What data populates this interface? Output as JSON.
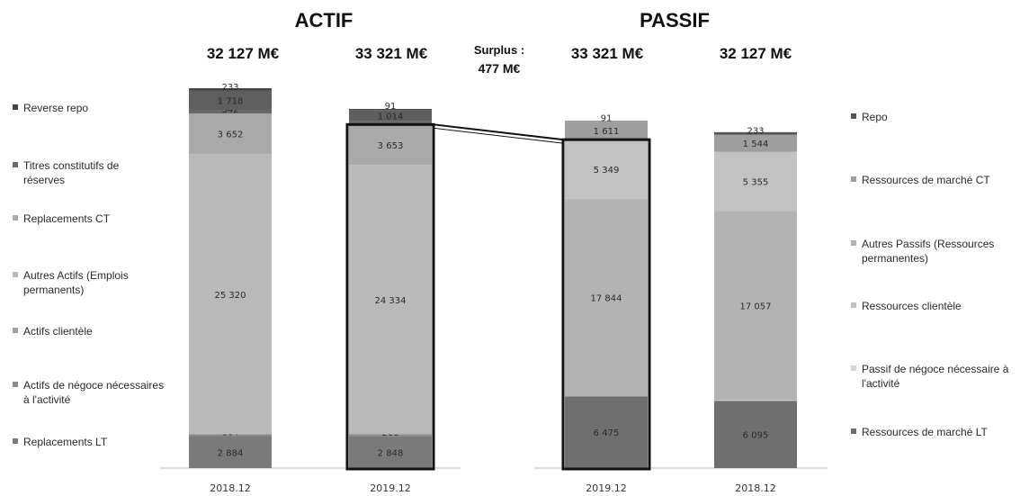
{
  "chart_data": {
    "type": "bar",
    "stacked": true,
    "headings": {
      "left": "ACTIF",
      "right": "PASSIF"
    },
    "surplus": {
      "label": "Surplus :",
      "value": "477 M€"
    },
    "categories": [
      "2018.12",
      "2019.12",
      "2019.12",
      "2018.12"
    ],
    "totals": [
      "32 127 M€",
      "33 321 M€",
      "33 321 M€",
      "32 127 M€"
    ],
    "actif_legend": [
      "Reverse repo",
      "Titres constitutifs de réserves",
      "Replacements CT",
      "Autres Actifs (Emplois permanents)",
      "Actifs clientèle",
      "Actifs de négoce nécessaires à l'activité",
      "Replacements LT"
    ],
    "passif_legend": [
      "Repo",
      "Ressources de marché CT",
      "Autres Passifs (Ressources permanentes)",
      "Ressources clientèle",
      "Passif de négoce nécessaire à l'activité",
      "Ressources de marché LT"
    ],
    "bars": [
      {
        "category": "2018.12",
        "segments": [
          {
            "name": "Replacements LT",
            "value": 2884,
            "label": "2 884",
            "color": "#7a7a7a"
          },
          {
            "name": "Actifs de négoce nécessaires à l'activité",
            "value": 164,
            "label": "164",
            "color": "#8c8c8c"
          },
          {
            "name": "Autres Actifs (Emplois permanents)",
            "value": 25320,
            "label": "25 320",
            "color": "#b9b9b9"
          },
          {
            "name": "Replacements CT",
            "value": 3652,
            "label": "3 652",
            "color": "#aaaaaa"
          },
          {
            "name": "Titres constitutifs de réserves",
            "value": 342,
            "label": "342",
            "color": "#6a6a6a"
          },
          {
            "name": "Reverse repo",
            "value": 1718,
            "label": "1 718",
            "color": "#5e5e5e"
          },
          {
            "name": "Reverse repo",
            "value": 233,
            "label": "233",
            "color": "#444444"
          }
        ]
      },
      {
        "category": "2019.12",
        "segments": [
          {
            "name": "Replacements LT",
            "value": 2848,
            "label": "2 848",
            "color": "#7a7a7a"
          },
          {
            "name": "Actifs de négoce nécessaires à l'activité",
            "value": 200,
            "label": "200",
            "color": "#8c8c8c"
          },
          {
            "name": "Autres Actifs (Emplois permanents)",
            "value": 24334,
            "label": "24 334",
            "color": "#b9b9b9"
          },
          {
            "name": "Replacements CT",
            "value": 3653,
            "label": "3 653",
            "color": "#aaaaaa"
          },
          {
            "name": "Titres constitutifs de réserves",
            "value": 300,
            "label": "",
            "color": "#6a6a6a"
          },
          {
            "name": "Reverse repo",
            "value": 1014,
            "label": "1 014",
            "color": "#5e5e5e"
          },
          {
            "name": "Reverse repo",
            "value": 91,
            "label": "91",
            "color": "#444444"
          }
        ]
      },
      {
        "category": "2019.12",
        "segments": [
          {
            "name": "Ressources de marché LT",
            "value": 6475,
            "label": "6 475",
            "color": "#6f6f6f"
          },
          {
            "name": "Autres Passifs (Ressources permanentes)",
            "value": 17844,
            "label": "17 844",
            "color": "#b3b3b3"
          },
          {
            "name": "Ressources clientèle",
            "value": 5349,
            "label": "5 349",
            "color": "#c2c2c2"
          },
          {
            "name": "Ressources de marché CT",
            "value": 1611,
            "label": "1 611",
            "color": "#9e9e9e"
          },
          {
            "name": "Repo",
            "value": 91,
            "label": "91",
            "color": "#8a8a8a"
          }
        ]
      },
      {
        "category": "2018.12",
        "segments": [
          {
            "name": "Ressources de marché LT",
            "value": 6095,
            "label": "6 095",
            "color": "#6f6f6f"
          },
          {
            "name": "Passif de négoce nécessaire à l'activité",
            "value": 60,
            "label": "",
            "color": "#d6d6d6"
          },
          {
            "name": "Autres Passifs (Ressources permanentes)",
            "value": 17057,
            "label": "17 057",
            "color": "#b3b3b3"
          },
          {
            "name": "Ressources clientèle",
            "value": 5355,
            "label": "5 355",
            "color": "#c2c2c2"
          },
          {
            "name": "Ressources de marché CT",
            "value": 1544,
            "label": "1 544",
            "color": "#9e9e9e"
          },
          {
            "name": "Repo",
            "value": 233,
            "label": "233",
            "color": "#555555"
          }
        ]
      }
    ],
    "highlights": [
      {
        "bar": 1,
        "from_value": 0,
        "to_value": 31035
      },
      {
        "bar": 2,
        "from_value": 0,
        "to_value": 29668
      }
    ]
  }
}
